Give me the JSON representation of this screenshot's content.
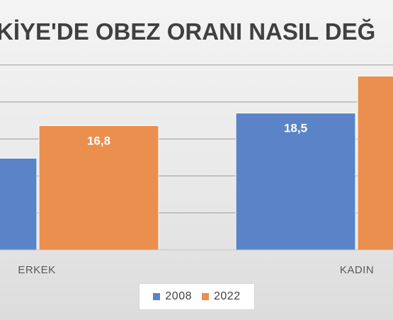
{
  "chart_data": {
    "type": "bar",
    "title": "KİYE'DE OBEZ ORANI NASIL DEĞ",
    "categories": [
      "ERKEK",
      "KADIN"
    ],
    "series": [
      {
        "name": "2008",
        "values": [
          12.4,
          18.5
        ],
        "color": "#5b84c8"
      },
      {
        "name": "2022",
        "values": [
          16.8,
          23.5
        ],
        "color": "#eb8f4e"
      }
    ],
    "data_labels": [
      "",
      "16,8",
      "18,5",
      ""
    ],
    "ylim": [
      0,
      25
    ],
    "grid": true,
    "legend_position": "bottom"
  }
}
